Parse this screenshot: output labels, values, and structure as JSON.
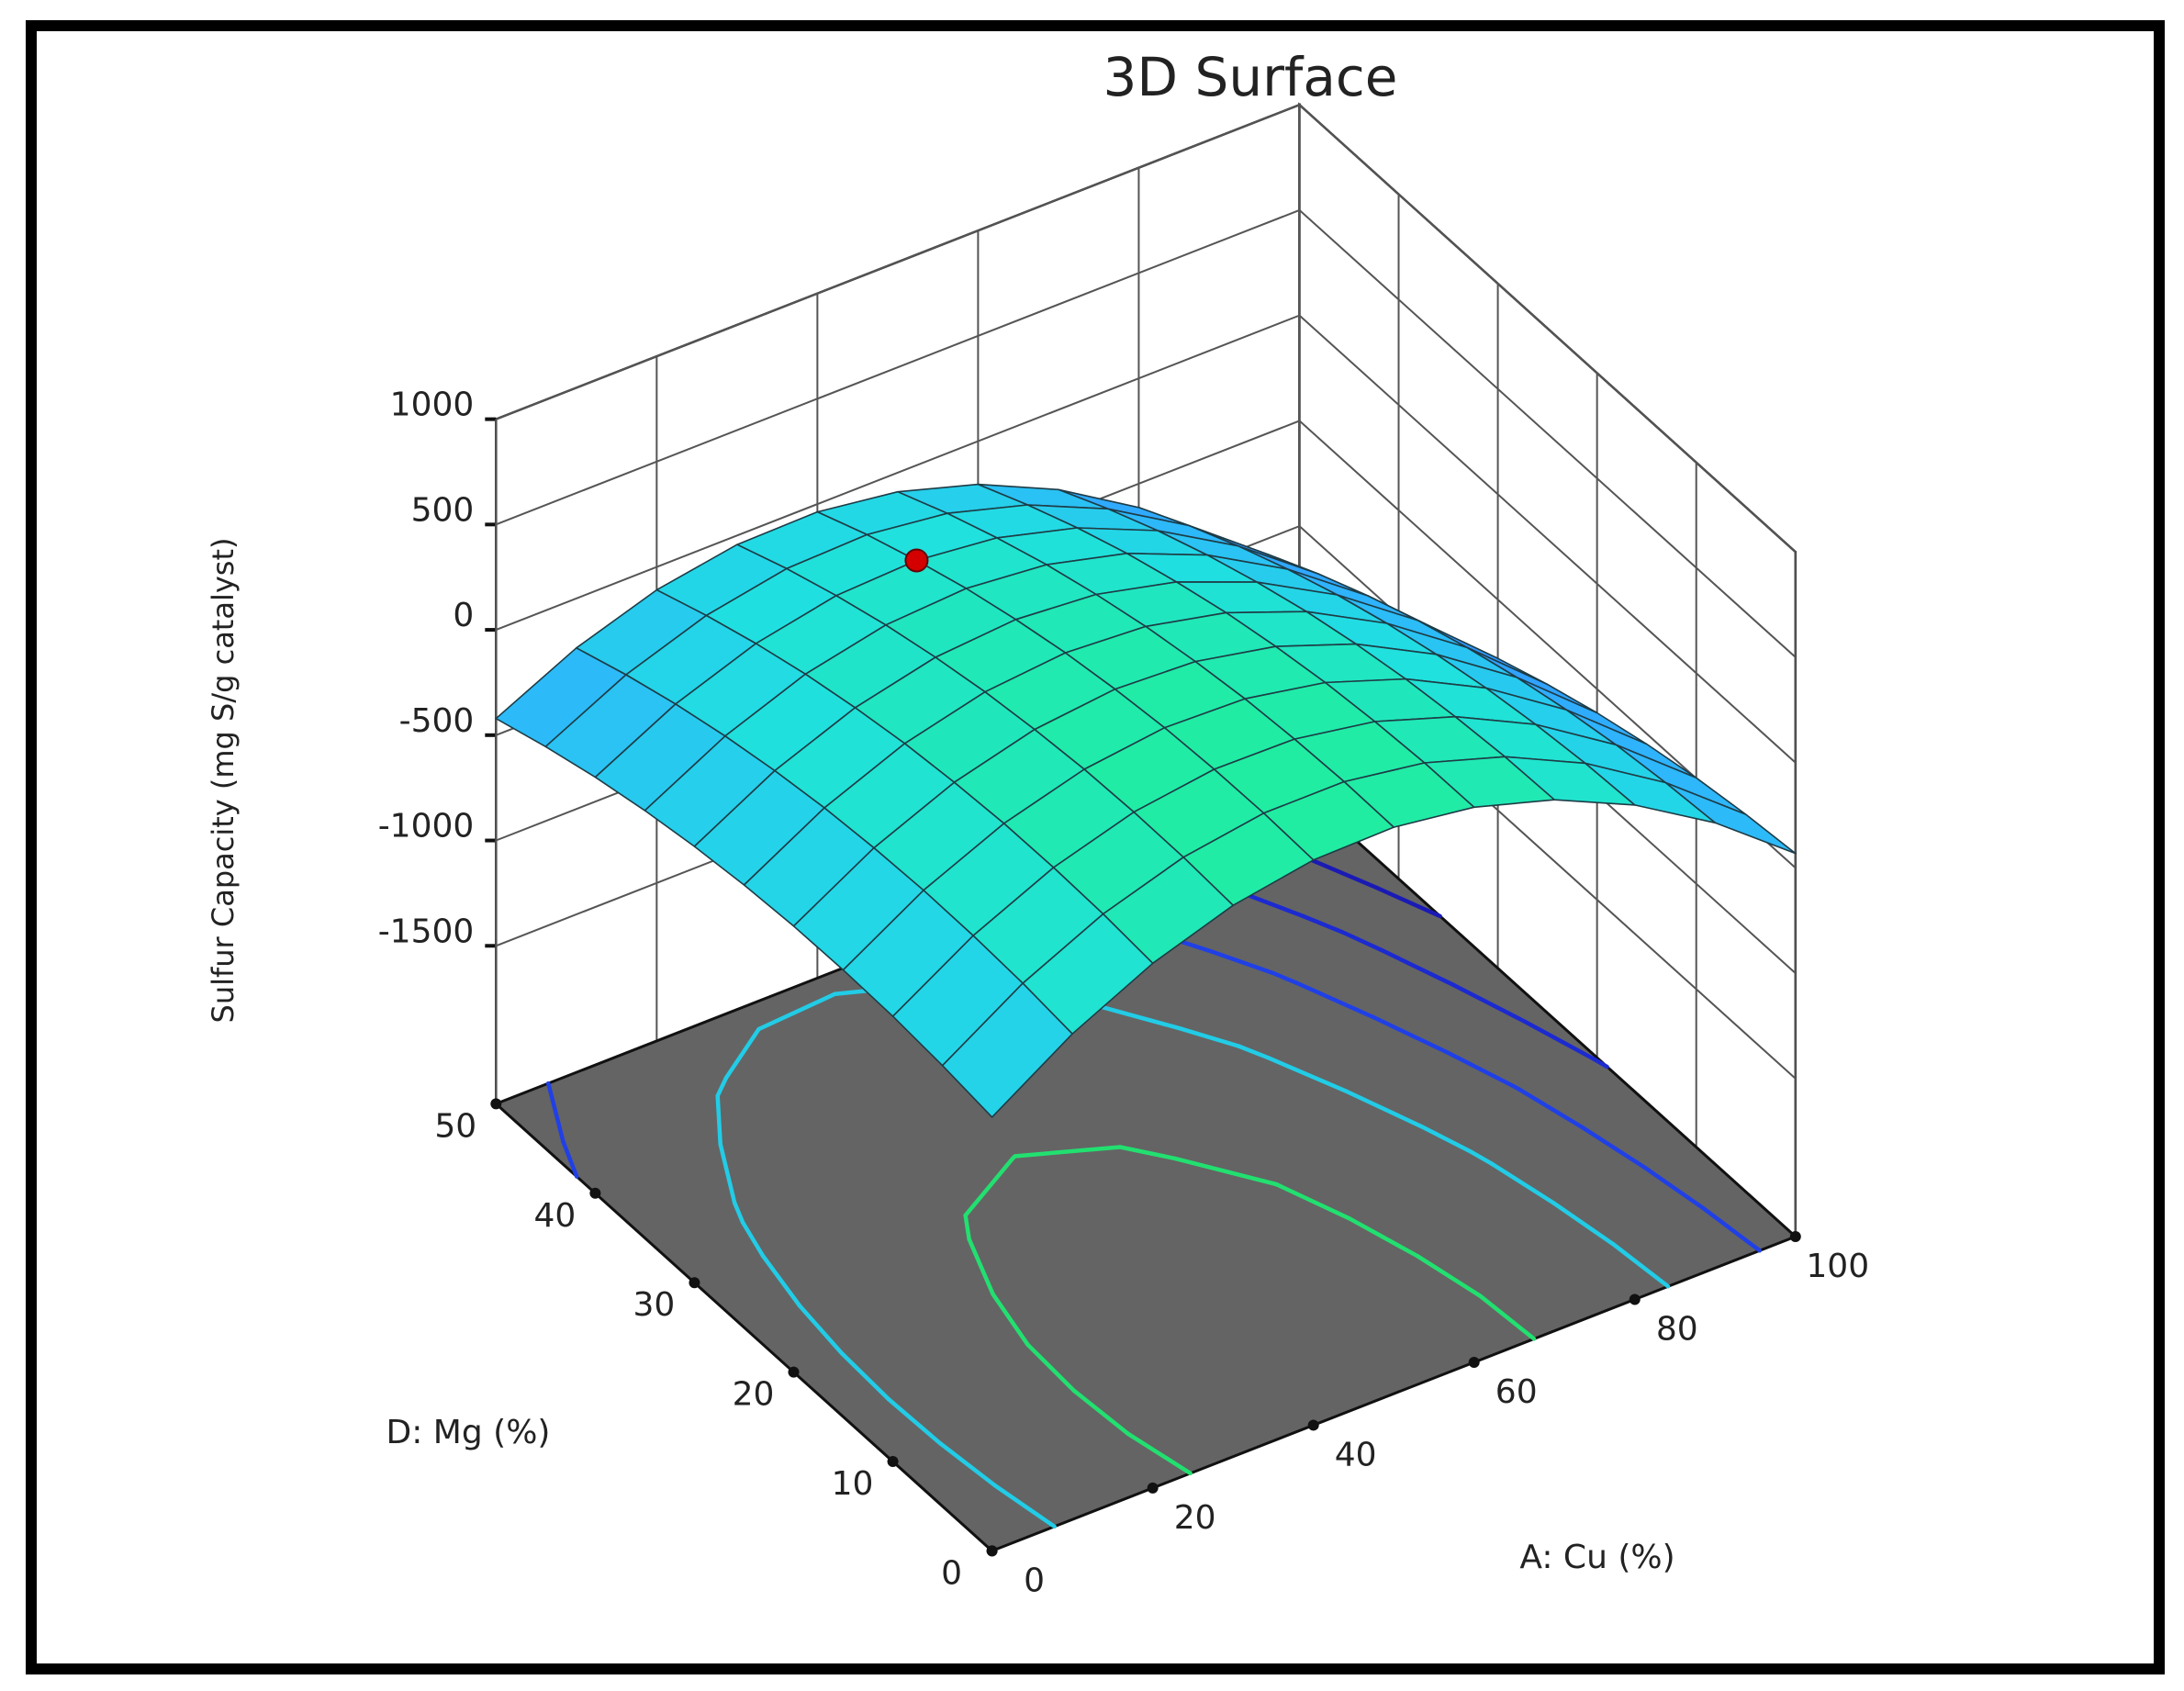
{
  "chart_data": {
    "type": "surface",
    "title": "3D Surface",
    "x_label": "A: Cu (%)",
    "y_label": "D: Mg (%)",
    "z_label": "Sulfur Capacity (mg S/g catalyst)",
    "x": [
      0,
      10,
      20,
      30,
      40,
      50,
      60,
      70,
      80,
      90,
      100
    ],
    "y": [
      0,
      5,
      10,
      15,
      20,
      25,
      30,
      35,
      40,
      45,
      50
    ],
    "z": [
      [
        -191,
        55,
        241,
        367,
        433,
        439,
        385,
        271,
        97,
        -137,
        -431
      ],
      [
        -158,
        83,
        263,
        383,
        443,
        443,
        383,
        263,
        83,
        -158,
        -458
      ],
      [
        -137,
        97,
        271,
        385,
        439,
        433,
        367,
        241,
        55,
        -191,
        -497
      ],
      [
        -129,
        100,
        268,
        376,
        424,
        412,
        340,
        208,
        16,
        -237,
        -549
      ],
      [
        -133,
        89,
        251,
        353,
        395,
        377,
        299,
        161,
        -37,
        -295,
        -613
      ],
      [
        -150,
        67,
        223,
        319,
        355,
        331,
        247,
        103,
        -102,
        -366,
        -690
      ],
      [
        -179,
        31,
        181,
        271,
        301,
        271,
        181,
        31,
        -179,
        -449,
        -779
      ],
      [
        -221,
        -17,
        128,
        212,
        236,
        200,
        104,
        -53,
        -269,
        -545,
        -881
      ],
      [
        -275,
        -77,
        61,
        139,
        157,
        115,
        13,
        -149,
        -371,
        -653,
        -995
      ],
      [
        -342,
        -150,
        -18,
        55,
        67,
        19,
        -90,
        -258,
        -486,
        -774,
        -1122
      ],
      [
        -421,
        -235,
        -109,
        -43,
        -37,
        -91,
        -205,
        -379,
        -613,
        -907,
        -1261
      ]
    ],
    "xlim": [
      0,
      100
    ],
    "ylim": [
      0,
      50
    ],
    "zlim": [
      -2250,
      1000
    ],
    "xticks": [
      0,
      20,
      40,
      60,
      80,
      100
    ],
    "yticks": [
      0,
      10,
      20,
      30,
      40,
      50
    ],
    "zticks": [
      -1500,
      -1000,
      -500,
      0,
      500,
      1000
    ],
    "grid": true,
    "colormap": [
      "#3000a0",
      "#1a10d0",
      "#2030ff",
      "#3070ff",
      "#30b0ff",
      "#20e0e0",
      "#20f090",
      "#50ff30"
    ],
    "floor_color": "#646464",
    "point": {
      "x": 40,
      "y": 40,
      "z": 157,
      "color": "#d40000"
    },
    "contours": [
      {
        "level": -900,
        "color": "#1a1ab4"
      },
      {
        "level": -600,
        "color": "#1c2ad0"
      },
      {
        "level": -300,
        "color": "#2040e6"
      },
      {
        "level": 0,
        "color": "#22cce6"
      },
      {
        "level": 300,
        "color": "#22e070"
      }
    ]
  }
}
